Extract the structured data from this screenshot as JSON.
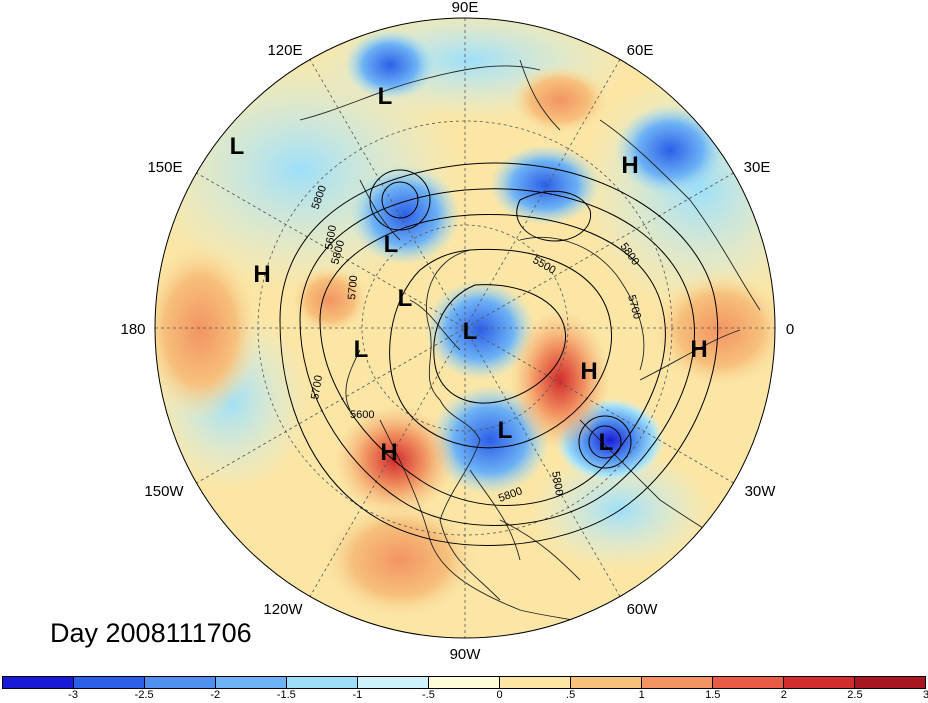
{
  "map": {
    "longitude_labels": [
      {
        "id": "90e",
        "text": "90E"
      },
      {
        "id": "60e",
        "text": "60E"
      },
      {
        "id": "30e",
        "text": "30E"
      },
      {
        "id": "0",
        "text": "0"
      },
      {
        "id": "30w",
        "text": "30W"
      },
      {
        "id": "60w",
        "text": "60W"
      },
      {
        "id": "90w",
        "text": "90W"
      },
      {
        "id": "120w",
        "text": "120W"
      },
      {
        "id": "150w",
        "text": "150W"
      },
      {
        "id": "180",
        "text": "180"
      },
      {
        "id": "150e",
        "text": "150E"
      },
      {
        "id": "120e",
        "text": "120E"
      }
    ],
    "pressure_centers": [
      {
        "type": "L"
      },
      {
        "type": "L"
      },
      {
        "type": "L"
      },
      {
        "type": "L"
      },
      {
        "type": "L"
      },
      {
        "type": "L"
      },
      {
        "type": "L"
      },
      {
        "type": "L"
      },
      {
        "type": "H"
      },
      {
        "type": "H"
      },
      {
        "type": "H"
      },
      {
        "type": "H"
      },
      {
        "type": "H"
      }
    ],
    "contour_labels": [
      "5800",
      "5800",
      "5700",
      "5600",
      "5600",
      "5700",
      "5800",
      "5800",
      "5500",
      "5800",
      "5700"
    ]
  },
  "title": "Day 2008111706",
  "colorbar": {
    "colors": [
      "#1a1ad6",
      "#2c5fe8",
      "#4f8ff0",
      "#6db2f5",
      "#9ddff9",
      "#cdf2fb",
      "#fdfbd8",
      "#fbe6a6",
      "#f7c07c",
      "#f29462",
      "#e95b45",
      "#d22c2c",
      "#a81622"
    ],
    "labels": [
      "-3",
      "-2.5",
      "-2",
      "-1.5",
      "-1",
      "-.5",
      "0",
      ".5",
      "1",
      "1.5",
      "2",
      "2.5",
      "3"
    ]
  }
}
